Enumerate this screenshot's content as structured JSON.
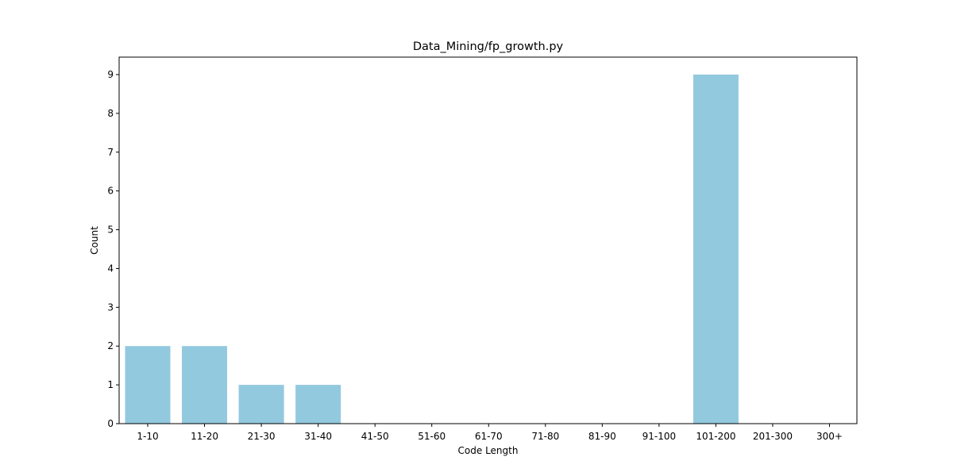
{
  "chart_data": {
    "type": "bar",
    "title": "Data_Mining/fp_growth.py",
    "xlabel": "Code Length",
    "ylabel": "Count",
    "categories": [
      "1-10",
      "11-20",
      "21-30",
      "31-40",
      "41-50",
      "51-60",
      "61-70",
      "71-80",
      "81-90",
      "91-100",
      "101-200",
      "201-300",
      "300+"
    ],
    "values": [
      2,
      2,
      1,
      1,
      0,
      0,
      0,
      0,
      0,
      0,
      9,
      0,
      0
    ],
    "ylim": [
      0,
      9.45
    ],
    "yticks": [
      "0",
      "1",
      "2",
      "3",
      "4",
      "5",
      "6",
      "7",
      "8",
      "9"
    ],
    "grid": false,
    "legend": "none",
    "bar_color": "#92c9df"
  }
}
